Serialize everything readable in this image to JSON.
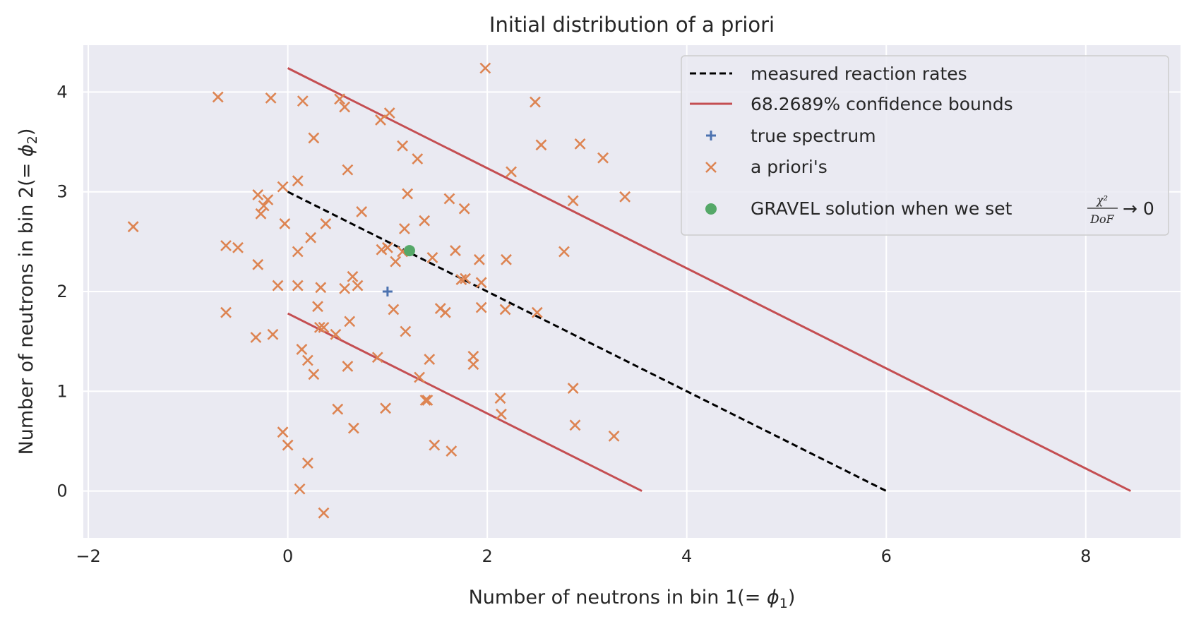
{
  "chart_data": {
    "type": "scatter",
    "title": "Initial distribution of a priori",
    "xlabel_prefix": "Number of neutrons in bin 1(",
    "xlabel_math": "= ϕ",
    "xlabel_sub": "1",
    "xlabel_suffix": ")",
    "ylabel_prefix": "Number of neutrons in bin 2(",
    "ylabel_math": "= ϕ",
    "ylabel_sub": "2",
    "ylabel_suffix": ")",
    "xlim": [
      -2.05,
      8.95
    ],
    "ylim": [
      -0.47,
      4.47
    ],
    "xticks": [
      -2,
      0,
      2,
      4,
      6,
      8
    ],
    "yticks": [
      0,
      1,
      2,
      3,
      4
    ],
    "xtick_labels": [
      "−2",
      "0",
      "2",
      "4",
      "6",
      "8"
    ],
    "ytick_labels": [
      "0",
      "1",
      "2",
      "3",
      "4"
    ],
    "grid": true,
    "legend_position": "top-right",
    "colors": {
      "background": "#EAEAF2",
      "grid": "#FFFFFF",
      "measured": "#000000",
      "bounds": "#C44E52",
      "true_spectrum": "#4C72B0",
      "apriori": "#DD8452",
      "gravel": "#55A868"
    },
    "legend": {
      "measured": "measured reaction rates",
      "bounds": "68.2689% confidence bounds",
      "true_spectrum": "true spectrum",
      "apriori": "a priori's",
      "gravel_prefix": "GRAVEL solution when we set",
      "gravel_frac_num": "χ²",
      "gravel_frac_den": "DoF",
      "gravel_suffix": "→ 0"
    },
    "measured_line": [
      [
        0,
        3.0
      ],
      [
        6.0,
        0
      ]
    ],
    "upper_bound": [
      [
        0,
        4.24
      ],
      [
        8.45,
        0
      ]
    ],
    "lower_bound": [
      [
        0,
        1.78
      ],
      [
        3.55,
        0
      ]
    ],
    "true_spectrum": [
      1.0,
      2.0
    ],
    "gravel_solution": [
      1.22,
      2.41
    ],
    "apriori_points": [
      [
        -1.55,
        2.65
      ],
      [
        -0.7,
        3.95
      ],
      [
        -0.62,
        2.46
      ],
      [
        -0.62,
        1.79
      ],
      [
        -0.5,
        2.44
      ],
      [
        -0.3,
        2.27
      ],
      [
        -0.3,
        2.97
      ],
      [
        -0.27,
        2.78
      ],
      [
        -0.24,
        2.86
      ],
      [
        -0.2,
        2.92
      ],
      [
        -0.17,
        3.94
      ],
      [
        -0.15,
        1.57
      ],
      [
        -0.32,
        1.54
      ],
      [
        -0.05,
        3.05
      ],
      [
        -0.03,
        2.68
      ],
      [
        -0.05,
        0.59
      ],
      [
        0.0,
        0.46
      ],
      [
        -0.1,
        2.06
      ],
      [
        0.1,
        3.11
      ],
      [
        0.1,
        2.4
      ],
      [
        0.1,
        2.06
      ],
      [
        0.12,
        0.02
      ],
      [
        0.15,
        3.91
      ],
      [
        0.14,
        1.42
      ],
      [
        0.2,
        1.31
      ],
      [
        0.2,
        0.28
      ],
      [
        0.23,
        2.54
      ],
      [
        0.26,
        1.17
      ],
      [
        0.26,
        3.54
      ],
      [
        0.3,
        1.85
      ],
      [
        0.33,
        2.04
      ],
      [
        0.32,
        1.64
      ],
      [
        0.36,
        1.64
      ],
      [
        0.38,
        2.68
      ],
      [
        0.36,
        -0.22
      ],
      [
        0.48,
        1.57
      ],
      [
        0.5,
        0.82
      ],
      [
        0.52,
        3.93
      ],
      [
        0.57,
        2.03
      ],
      [
        0.57,
        3.85
      ],
      [
        0.6,
        3.22
      ],
      [
        0.62,
        1.7
      ],
      [
        0.6,
        1.25
      ],
      [
        0.65,
        2.15
      ],
      [
        0.66,
        0.63
      ],
      [
        0.7,
        2.06
      ],
      [
        0.74,
        2.8
      ],
      [
        0.9,
        1.34
      ],
      [
        0.94,
        2.42
      ],
      [
        0.93,
        3.72
      ],
      [
        0.98,
        0.83
      ],
      [
        1.0,
        2.44
      ],
      [
        1.02,
        3.79
      ],
      [
        1.06,
        1.82
      ],
      [
        1.08,
        2.3
      ],
      [
        1.15,
        2.4
      ],
      [
        1.15,
        3.46
      ],
      [
        1.17,
        2.63
      ],
      [
        1.2,
        2.98
      ],
      [
        1.18,
        1.6
      ],
      [
        1.3,
        3.33
      ],
      [
        1.32,
        1.14
      ],
      [
        1.37,
        2.71
      ],
      [
        1.38,
        0.91
      ],
      [
        1.4,
        0.91
      ],
      [
        1.42,
        1.32
      ],
      [
        1.45,
        2.34
      ],
      [
        1.47,
        0.46
      ],
      [
        1.53,
        1.83
      ],
      [
        1.58,
        1.79
      ],
      [
        1.62,
        2.93
      ],
      [
        1.64,
        0.4
      ],
      [
        1.68,
        2.41
      ],
      [
        1.74,
        2.12
      ],
      [
        1.78,
        2.13
      ],
      [
        1.77,
        2.83
      ],
      [
        1.86,
        1.35
      ],
      [
        1.86,
        1.27
      ],
      [
        1.92,
        2.32
      ],
      [
        1.94,
        2.09
      ],
      [
        1.94,
        1.84
      ],
      [
        1.98,
        4.24
      ],
      [
        2.13,
        0.93
      ],
      [
        2.14,
        0.77
      ],
      [
        2.19,
        2.32
      ],
      [
        2.18,
        1.82
      ],
      [
        2.24,
        3.2
      ],
      [
        2.48,
        3.9
      ],
      [
        2.5,
        1.79
      ],
      [
        2.54,
        3.47
      ],
      [
        2.77,
        2.4
      ],
      [
        2.86,
        2.91
      ],
      [
        2.86,
        1.03
      ],
      [
        2.88,
        0.66
      ],
      [
        2.93,
        3.48
      ],
      [
        3.16,
        3.34
      ],
      [
        3.27,
        0.55
      ],
      [
        3.38,
        2.95
      ]
    ]
  }
}
